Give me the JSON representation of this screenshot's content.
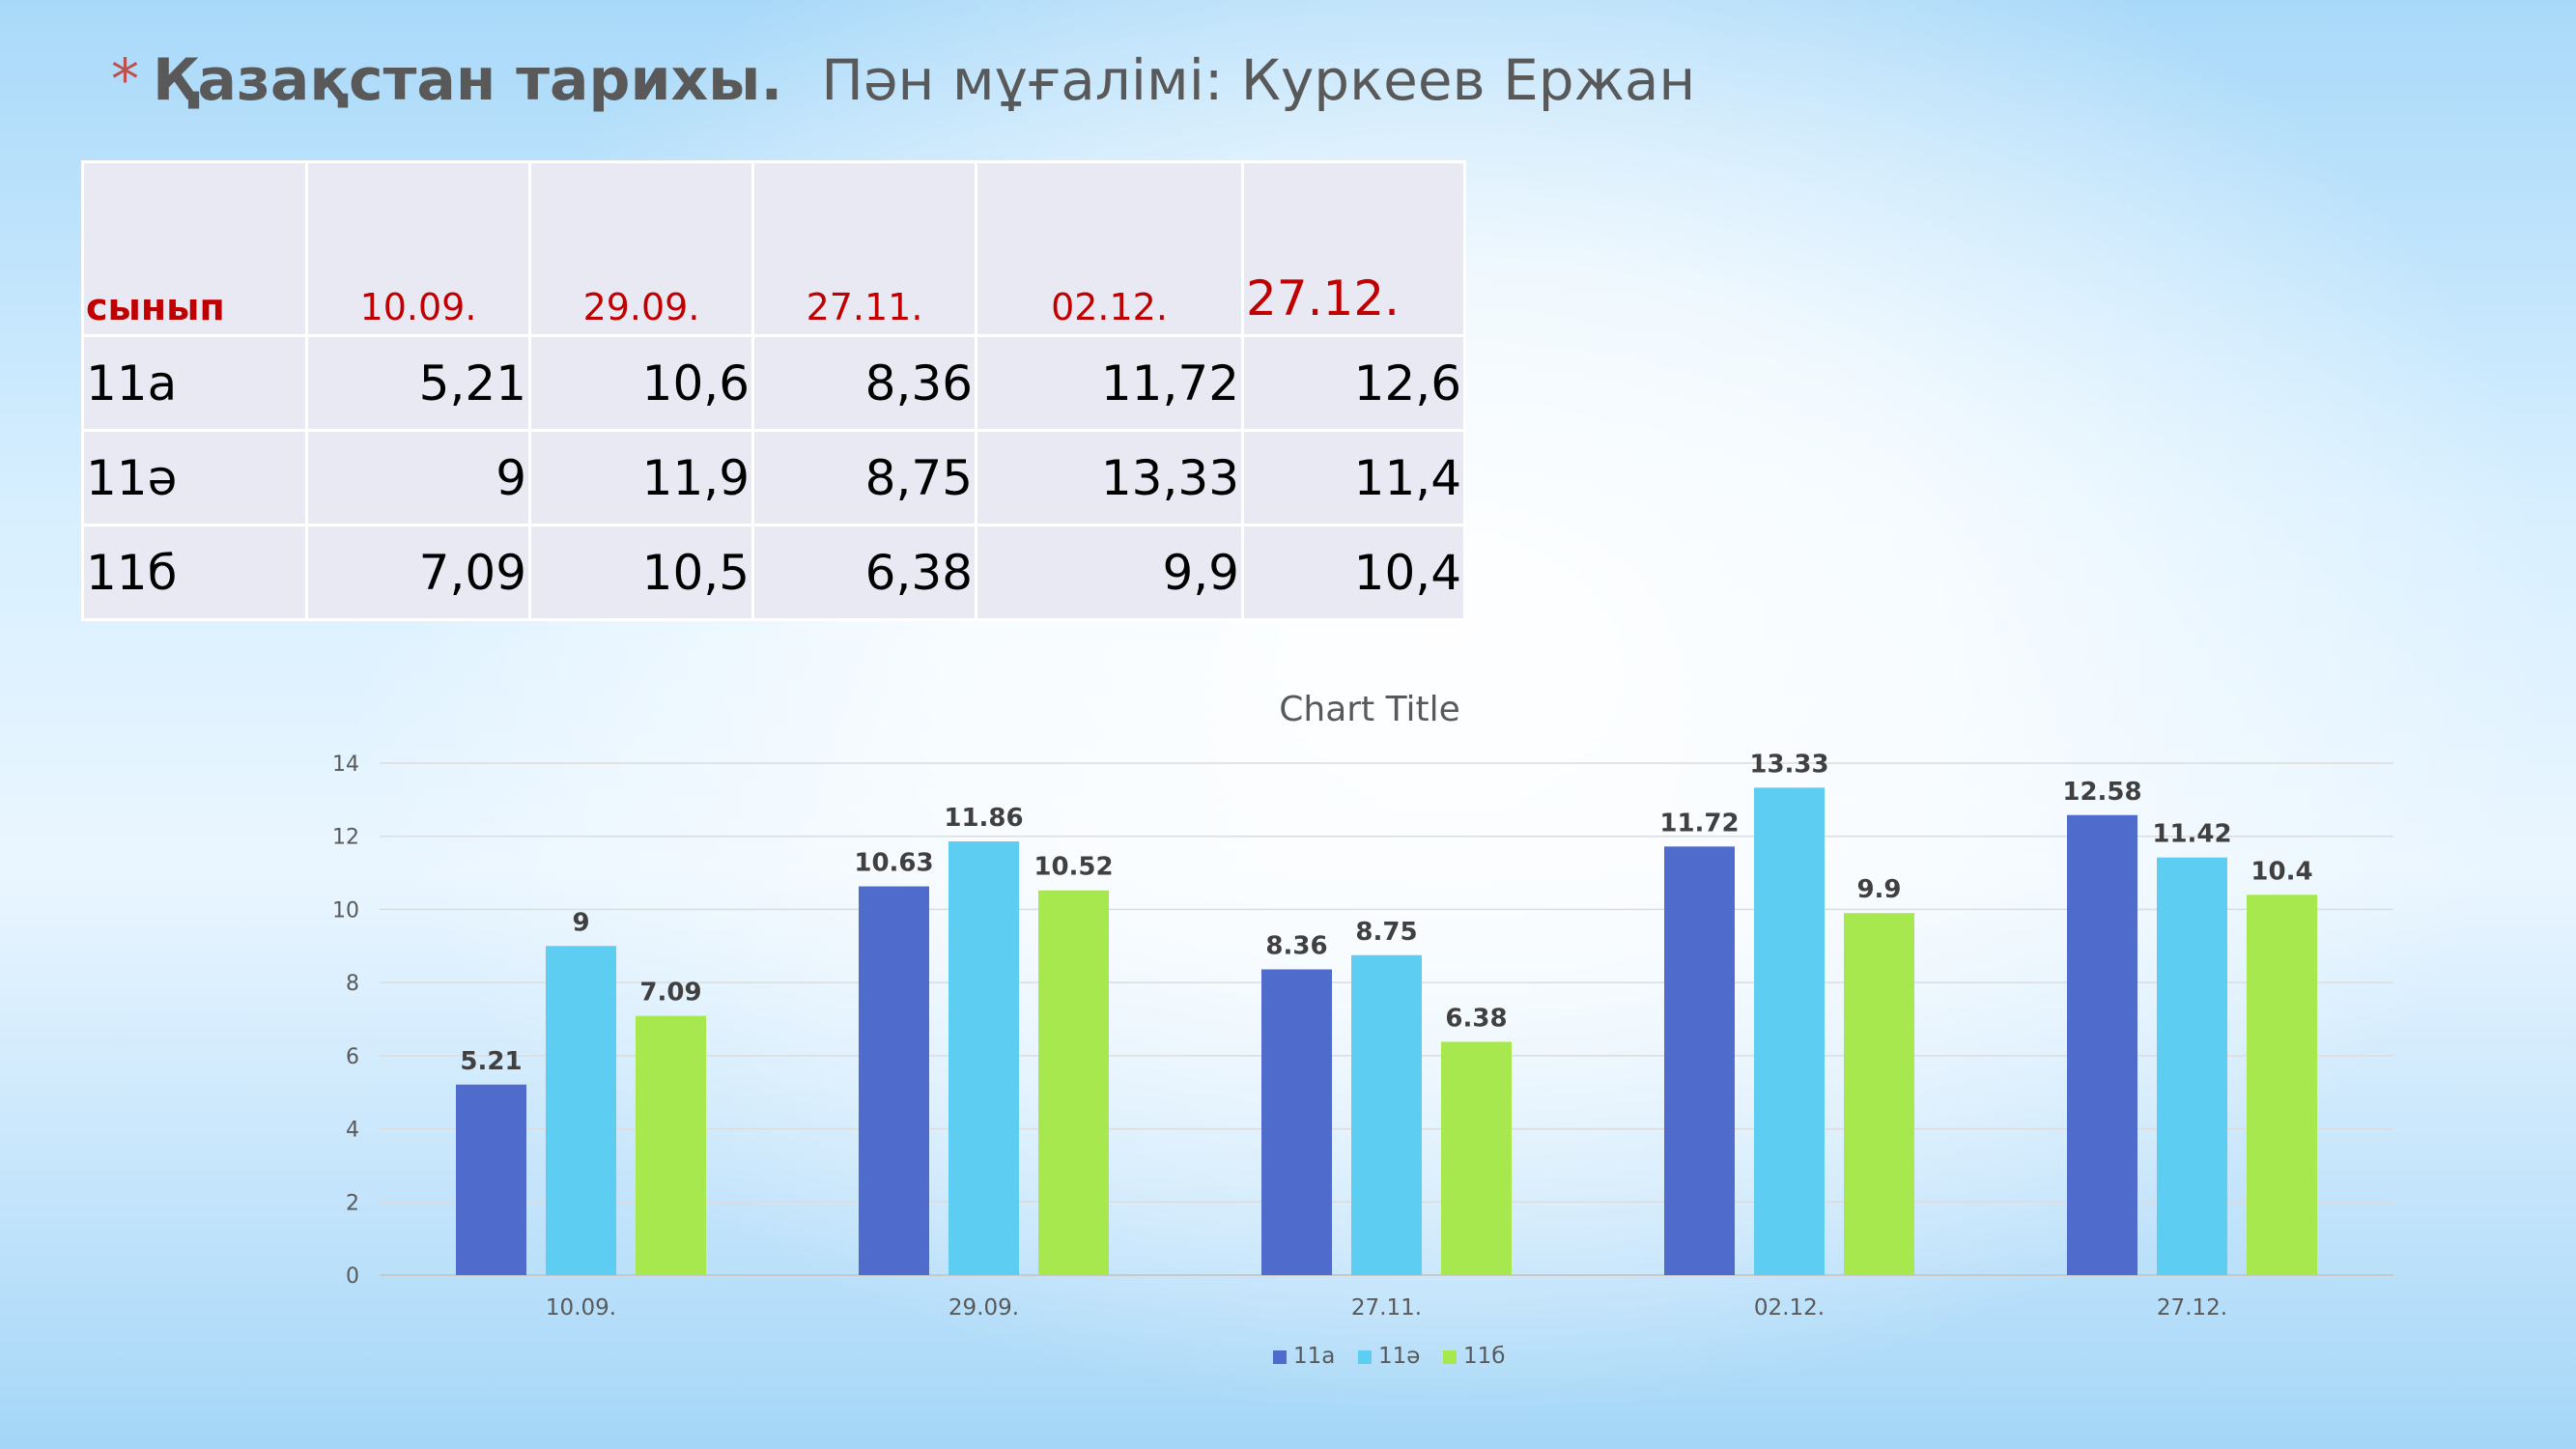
{
  "header": {
    "bullet": "*",
    "title": "Қазақстан тарихы.",
    "subtitle": "Пән мұғалімі:  Куркеев Ержан"
  },
  "table": {
    "header": [
      "сынып",
      "10.09.",
      "29.09.",
      "27.11.",
      "02.12.",
      "27.12."
    ],
    "rows": [
      [
        "11а",
        "5,21",
        "10,6",
        "8,36",
        "11,72",
        "12,6"
      ],
      [
        "11ә",
        "9",
        "11,9",
        "8,75",
        "13,33",
        "11,4"
      ],
      [
        "11б",
        "7,09",
        "10,5",
        "6,38",
        "9,9",
        "10,4"
      ]
    ]
  },
  "chart_data": {
    "type": "bar",
    "title": "Chart Title",
    "categories": [
      "10.09.",
      "29.09.",
      "27.11.",
      "02.12.",
      "27.12."
    ],
    "series": [
      {
        "name": "11а",
        "color": "#4f6bcc",
        "values": [
          5.21,
          10.63,
          8.36,
          11.72,
          12.58
        ],
        "labels": [
          "5.21",
          "10.63",
          "8.36",
          "11.72",
          "12.58"
        ]
      },
      {
        "name": "11ә",
        "color": "#5ecdf2",
        "values": [
          9,
          11.86,
          8.75,
          13.33,
          11.42
        ],
        "labels": [
          "9",
          "11.86",
          "8.75",
          "13.33",
          "11.42"
        ]
      },
      {
        "name": "11б",
        "color": "#a7e84e",
        "values": [
          7.09,
          10.52,
          6.38,
          9.9,
          10.4
        ],
        "labels": [
          "7.09",
          "10.52",
          "6.38",
          "9.9",
          "10.4"
        ]
      }
    ],
    "ylim": [
      0,
      14
    ],
    "yticks": [
      0,
      2,
      4,
      6,
      8,
      10,
      12,
      14
    ],
    "grid": true,
    "legend": "bottom"
  }
}
